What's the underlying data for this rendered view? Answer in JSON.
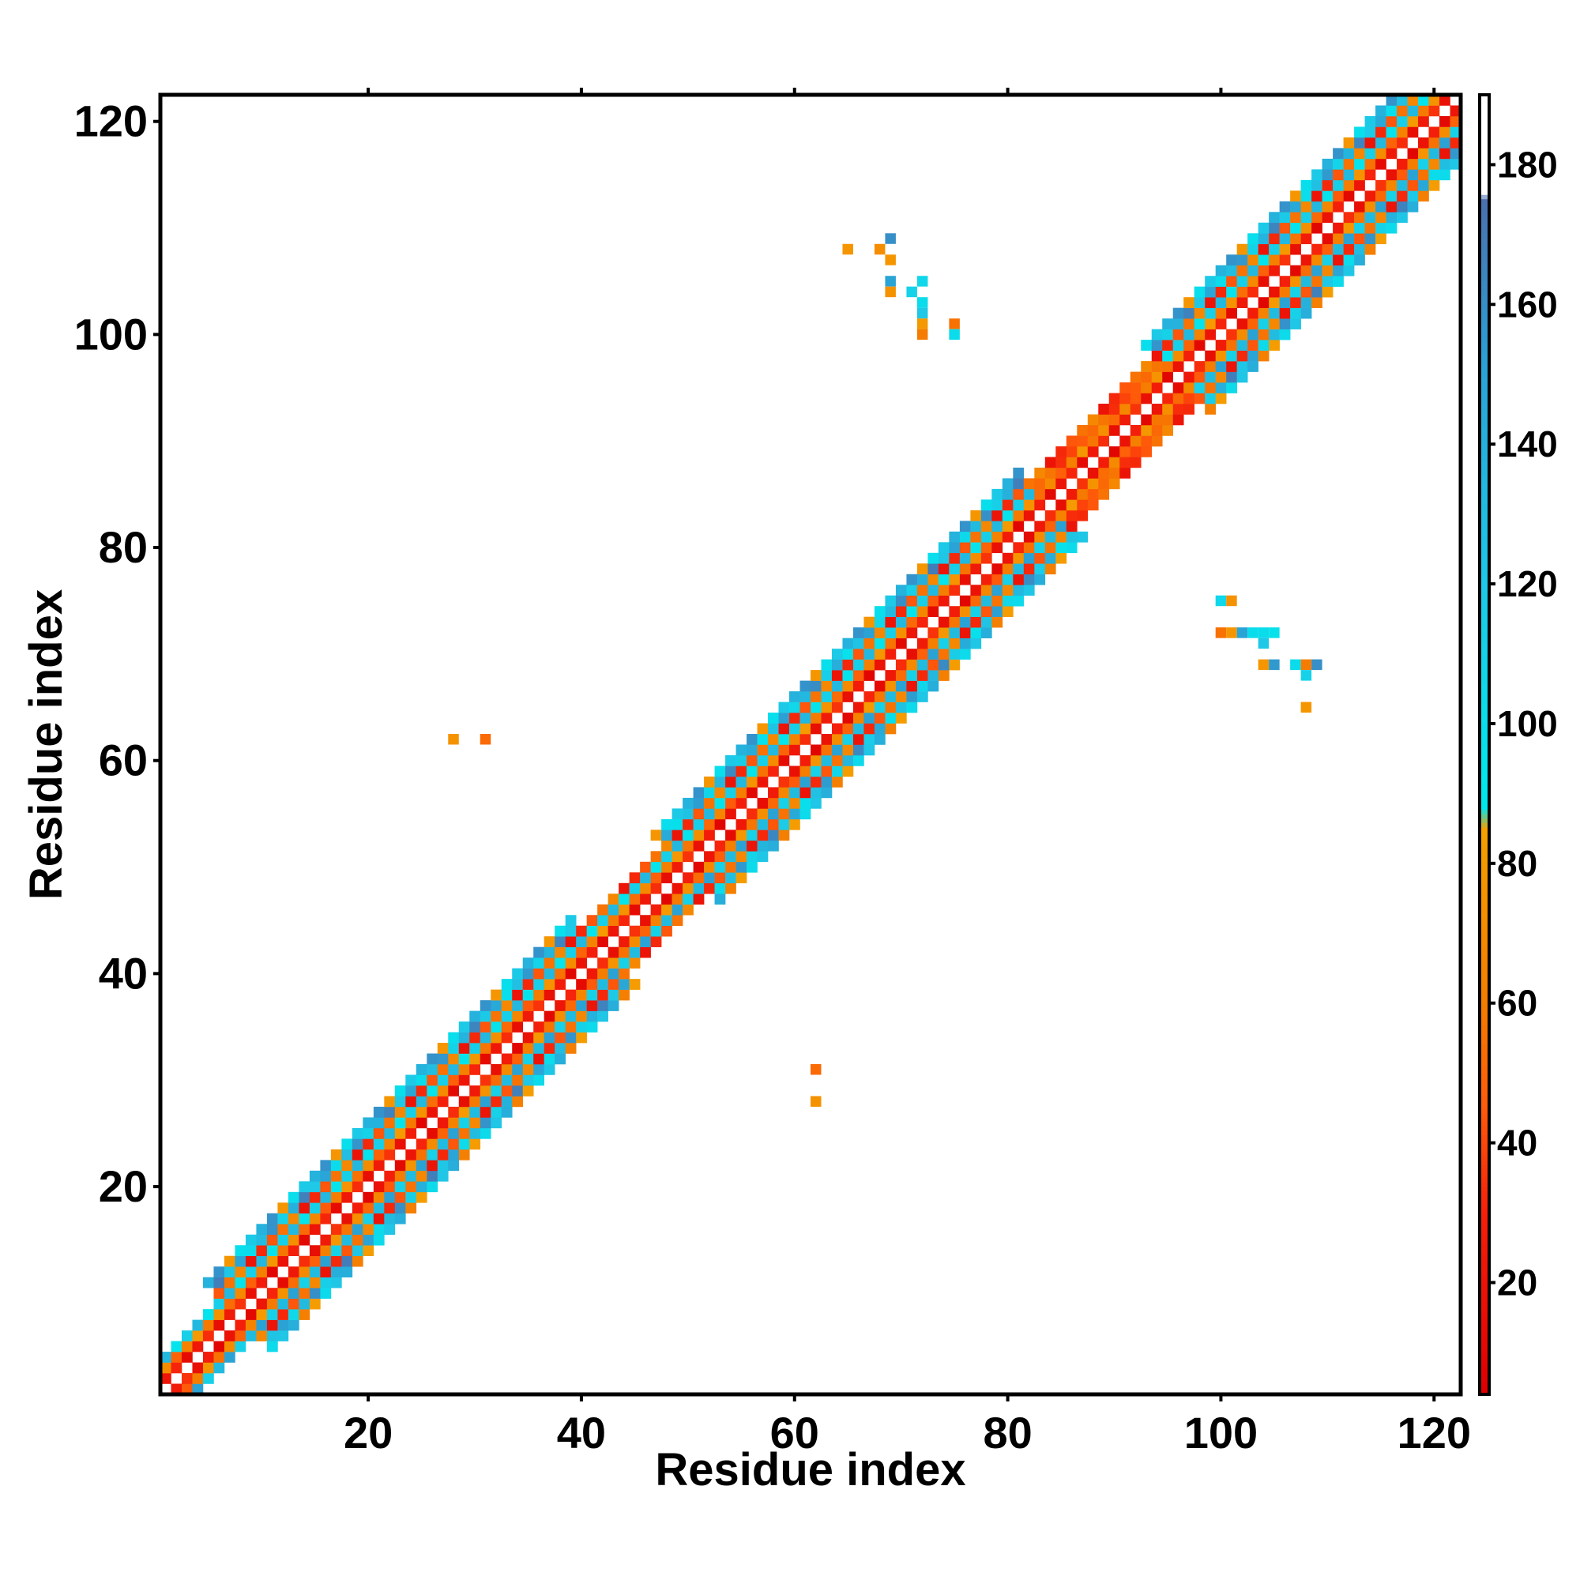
{
  "chart_data": {
    "type": "heatmap",
    "title": "",
    "xlabel": "Residue index",
    "ylabel": "Residue index",
    "xlim": [
      0.5,
      122.5
    ],
    "ylim": [
      0.5,
      122.5
    ],
    "xticks": [
      20,
      40,
      60,
      80,
      100,
      120
    ],
    "yticks": [
      20,
      40,
      60,
      80,
      100,
      120
    ],
    "colorbar": {
      "range": [
        4,
        190
      ],
      "ticks": [
        20,
        40,
        60,
        80,
        100,
        120,
        140,
        160,
        180
      ],
      "stops": [
        {
          "value": 4,
          "color": "#dd0000"
        },
        {
          "value": 30,
          "color": "#f5200a"
        },
        {
          "value": 45,
          "color": "#ff5a0a"
        },
        {
          "value": 60,
          "color": "#f57c00"
        },
        {
          "value": 85,
          "color": "#f5a000"
        },
        {
          "value": 88,
          "color": "#00e8ee"
        },
        {
          "value": 120,
          "color": "#1ec8e6"
        },
        {
          "value": 150,
          "color": "#2aa4d6"
        },
        {
          "value": 175,
          "color": "#4a70b0"
        },
        {
          "value": 176,
          "color": "#ffffff"
        },
        {
          "value": 190,
          "color": "#ffffff"
        }
      ]
    },
    "off_diagonal_cells": [
      {
        "x": 28,
        "y": 62,
        "value": 75
      },
      {
        "x": 31,
        "y": 62,
        "value": 52
      },
      {
        "x": 62,
        "y": 31,
        "value": 52
      },
      {
        "x": 62,
        "y": 28,
        "value": 75
      },
      {
        "x": 65,
        "y": 108,
        "value": 78
      },
      {
        "x": 68,
        "y": 108,
        "value": 72
      },
      {
        "x": 69,
        "y": 109,
        "value": 160
      },
      {
        "x": 69,
        "y": 107,
        "value": 78
      },
      {
        "x": 69,
        "y": 105,
        "value": 150
      },
      {
        "x": 69,
        "y": 104,
        "value": 75
      },
      {
        "x": 71,
        "y": 104,
        "value": 110
      },
      {
        "x": 72,
        "y": 105,
        "value": 105
      },
      {
        "x": 72,
        "y": 103,
        "value": 100
      },
      {
        "x": 72,
        "y": 102,
        "value": 120
      },
      {
        "x": 72,
        "y": 101,
        "value": 80
      },
      {
        "x": 72,
        "y": 100,
        "value": 60
      },
      {
        "x": 75,
        "y": 101,
        "value": 55
      },
      {
        "x": 75,
        "y": 100,
        "value": 100
      },
      {
        "x": 100,
        "y": 75,
        "value": 105
      },
      {
        "x": 101,
        "y": 75,
        "value": 75
      },
      {
        "x": 100,
        "y": 72,
        "value": 55
      },
      {
        "x": 101,
        "y": 72,
        "value": 78
      },
      {
        "x": 102,
        "y": 72,
        "value": 150
      },
      {
        "x": 103,
        "y": 72,
        "value": 100
      },
      {
        "x": 104,
        "y": 72,
        "value": 100
      },
      {
        "x": 105,
        "y": 72,
        "value": 95
      },
      {
        "x": 104,
        "y": 71,
        "value": 120
      },
      {
        "x": 104,
        "y": 69,
        "value": 78
      },
      {
        "x": 105,
        "y": 69,
        "value": 155
      },
      {
        "x": 107,
        "y": 69,
        "value": 100
      },
      {
        "x": 108,
        "y": 69,
        "value": 60
      },
      {
        "x": 108,
        "y": 68,
        "value": 110
      },
      {
        "x": 109,
        "y": 69,
        "value": 160
      },
      {
        "x": 108,
        "y": 65,
        "value": 78
      }
    ]
  }
}
